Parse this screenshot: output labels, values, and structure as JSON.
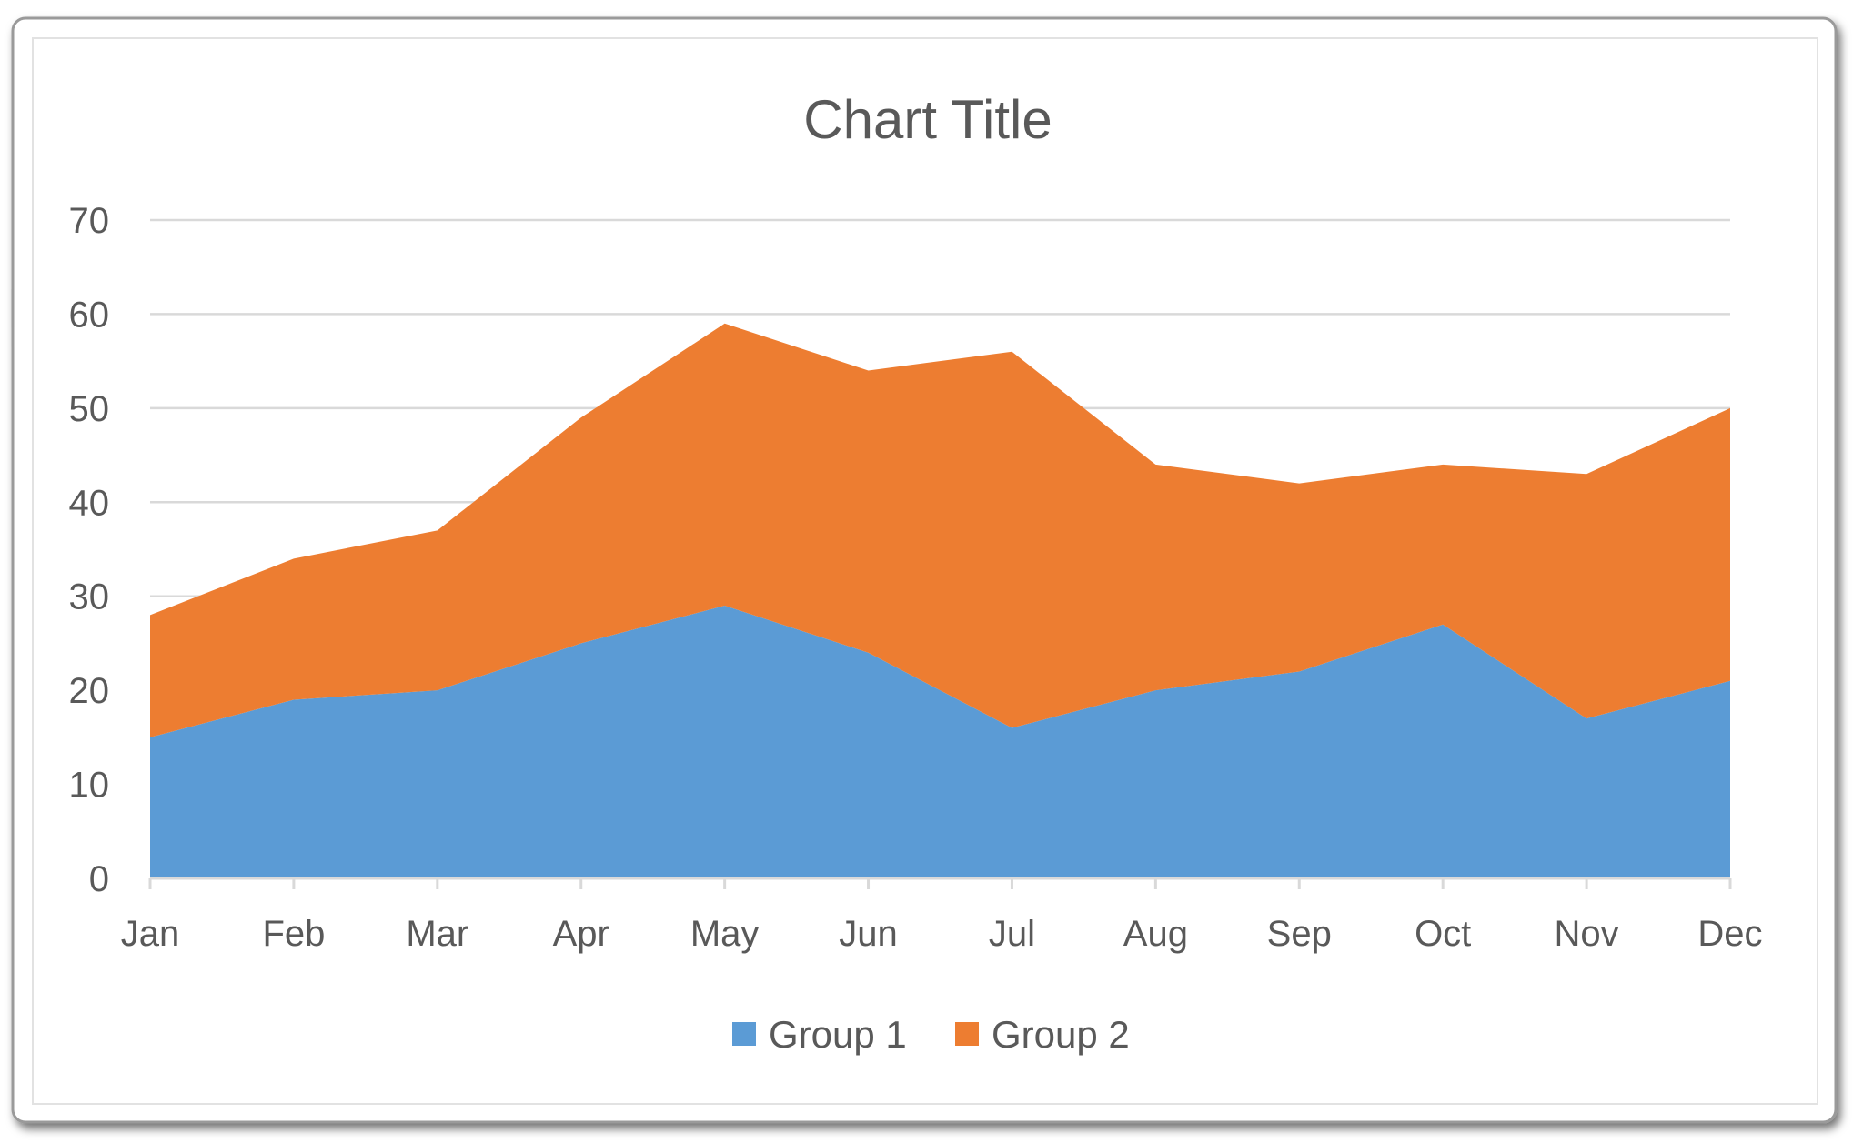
{
  "chart_data": {
    "type": "area",
    "stacked": true,
    "title": "Chart Title",
    "xlabel": "",
    "ylabel": "",
    "categories": [
      "Jan",
      "Feb",
      "Mar",
      "Apr",
      "May",
      "Jun",
      "Jul",
      "Aug",
      "Sep",
      "Oct",
      "Nov",
      "Dec"
    ],
    "series": [
      {
        "name": "Group 1",
        "color": "#5B9BD5",
        "values": [
          15,
          19,
          20,
          25,
          29,
          24,
          16,
          20,
          22,
          27,
          17,
          21
        ]
      },
      {
        "name": "Group 2",
        "color": "#ED7D31",
        "values": [
          13,
          15,
          17,
          24,
          30,
          30,
          40,
          24,
          20,
          17,
          26,
          29
        ]
      }
    ],
    "ylim": [
      0,
      70
    ],
    "yticks": [
      0,
      10,
      20,
      30,
      40,
      50,
      60,
      70
    ],
    "grid": true,
    "legend": "bottom"
  }
}
